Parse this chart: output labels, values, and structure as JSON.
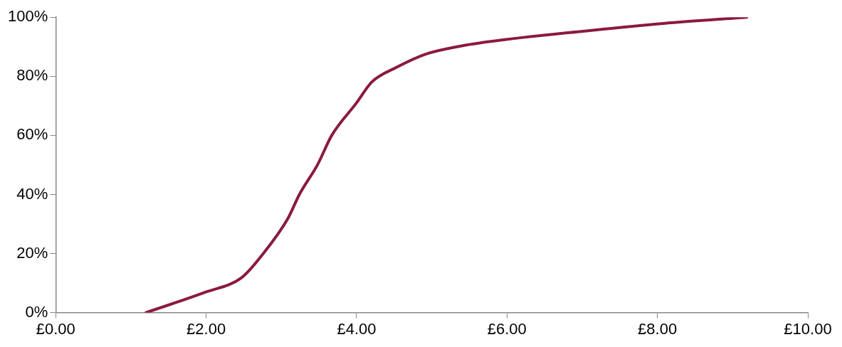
{
  "chart_data": {
    "type": "line",
    "color": "#8b1a3f",
    "marker": "none",
    "x": [
      1.2,
      1.99,
      2.47,
      2.76,
      3.09,
      3.24,
      3.48,
      3.67,
      4.0,
      4.2,
      4.53,
      4.92,
      5.4,
      5.97,
      7.03,
      8.08,
      9.19
    ],
    "values": [
      0,
      6.9,
      11.8,
      20,
      32,
      40,
      50,
      60,
      71,
      78,
      83,
      87.5,
      90.3,
      92.4,
      95.3,
      97.9,
      100
    ],
    "xlim": [
      0,
      10
    ],
    "xticks": [
      {
        "value": 0,
        "label": "£0.00"
      },
      {
        "value": 2,
        "label": "£2.00"
      },
      {
        "value": 4,
        "label": "£4.00"
      },
      {
        "value": 6,
        "label": "£6.00"
      },
      {
        "value": 8,
        "label": "£8.00"
      },
      {
        "value": 10,
        "label": "£10.00"
      }
    ],
    "ylim": [
      0,
      100
    ],
    "yticks": [
      {
        "value": 0,
        "label": "0%"
      },
      {
        "value": 20,
        "label": "20%"
      },
      {
        "value": 40,
        "label": "40%"
      },
      {
        "value": 60,
        "label": "60%"
      },
      {
        "value": 80,
        "label": "80%"
      },
      {
        "value": 100,
        "label": "100%"
      }
    ]
  }
}
